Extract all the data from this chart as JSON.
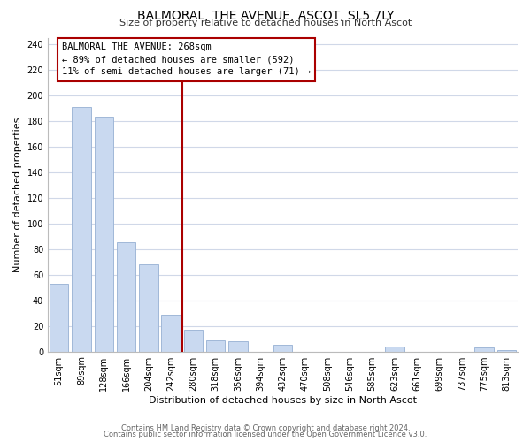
{
  "title": "BALMORAL, THE AVENUE, ASCOT, SL5 7LY",
  "subtitle": "Size of property relative to detached houses in North Ascot",
  "xlabel": "Distribution of detached houses by size in North Ascot",
  "ylabel": "Number of detached properties",
  "bin_labels": [
    "51sqm",
    "89sqm",
    "128sqm",
    "166sqm",
    "204sqm",
    "242sqm",
    "280sqm",
    "318sqm",
    "356sqm",
    "394sqm",
    "432sqm",
    "470sqm",
    "508sqm",
    "546sqm",
    "585sqm",
    "623sqm",
    "661sqm",
    "699sqm",
    "737sqm",
    "775sqm",
    "813sqm"
  ],
  "bar_heights": [
    53,
    191,
    183,
    85,
    68,
    29,
    17,
    9,
    8,
    0,
    5,
    0,
    0,
    0,
    0,
    4,
    0,
    0,
    0,
    3,
    1
  ],
  "bar_color": "#c9d9f0",
  "bar_edgecolor": "#a0b8d8",
  "vline_x_index": 6,
  "vline_color": "#aa0000",
  "annotation_title": "BALMORAL THE AVENUE: 268sqm",
  "annotation_line1": "← 89% of detached houses are smaller (592)",
  "annotation_line2": "11% of semi-detached houses are larger (71) →",
  "annotation_box_color": "#ffffff",
  "annotation_box_edgecolor": "#aa0000",
  "ylim": [
    0,
    245
  ],
  "yticks": [
    0,
    20,
    40,
    60,
    80,
    100,
    120,
    140,
    160,
    180,
    200,
    220,
    240
  ],
  "footer1": "Contains HM Land Registry data © Crown copyright and database right 2024.",
  "footer2": "Contains public sector information licensed under the Open Government Licence v3.0.",
  "background_color": "#ffffff",
  "grid_color": "#d0d8e8",
  "title_fontsize": 10,
  "subtitle_fontsize": 8,
  "axis_label_fontsize": 8,
  "tick_fontsize": 7,
  "annotation_fontsize": 7.5,
  "footer_fontsize": 6
}
